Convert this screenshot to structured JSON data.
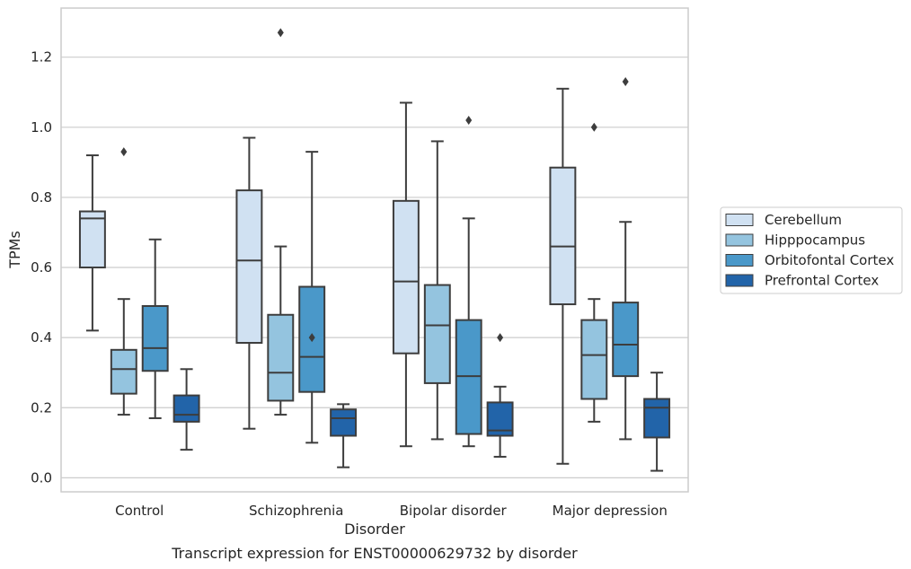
{
  "chart_data": {
    "type": "box",
    "xlabel": "Disorder",
    "ylabel": "TPMs",
    "caption": "Transcript expression for ENST00000629732 by disorder",
    "ylim": [
      -0.04,
      1.34
    ],
    "yticks": [
      0.0,
      0.2,
      0.4,
      0.6,
      0.8,
      1.0,
      1.2
    ],
    "ytick_labels": [
      "0.0",
      "0.2",
      "0.4",
      "0.6",
      "0.8",
      "1.0",
      "1.2"
    ],
    "grid": "horizontal",
    "legend_position": "right, outside plot",
    "categories": [
      "Control",
      "Schizophrenia",
      "Bipolar disorder",
      "Major depression"
    ],
    "series": [
      {
        "name": "Cerebellum",
        "color": "#d0e1f2",
        "boxes": [
          {
            "whisker_low": 0.42,
            "q1": 0.6,
            "median": 0.74,
            "q3": 0.76,
            "whisker_high": 0.92,
            "outliers": []
          },
          {
            "whisker_low": 0.14,
            "q1": 0.385,
            "median": 0.62,
            "q3": 0.82,
            "whisker_high": 0.97,
            "outliers": []
          },
          {
            "whisker_low": 0.09,
            "q1": 0.355,
            "median": 0.56,
            "q3": 0.79,
            "whisker_high": 1.07,
            "outliers": []
          },
          {
            "whisker_low": 0.04,
            "q1": 0.495,
            "median": 0.66,
            "q3": 0.885,
            "whisker_high": 1.11,
            "outliers": []
          }
        ]
      },
      {
        "name": "Hipppocampus",
        "color": "#94c4df",
        "boxes": [
          {
            "whisker_low": 0.18,
            "q1": 0.24,
            "median": 0.31,
            "q3": 0.365,
            "whisker_high": 0.51,
            "outliers": [
              0.93
            ]
          },
          {
            "whisker_low": 0.18,
            "q1": 0.22,
            "median": 0.3,
            "q3": 0.465,
            "whisker_high": 0.66,
            "outliers": [
              1.27
            ]
          },
          {
            "whisker_low": 0.11,
            "q1": 0.27,
            "median": 0.435,
            "q3": 0.55,
            "whisker_high": 0.96,
            "outliers": []
          },
          {
            "whisker_low": 0.16,
            "q1": 0.225,
            "median": 0.35,
            "q3": 0.45,
            "whisker_high": 0.51,
            "outliers": [
              1.0
            ]
          }
        ]
      },
      {
        "name": "Orbitofontal Cortex",
        "color": "#4a98c9",
        "boxes": [
          {
            "whisker_low": 0.17,
            "q1": 0.305,
            "median": 0.37,
            "q3": 0.49,
            "whisker_high": 0.68,
            "outliers": []
          },
          {
            "whisker_low": 0.1,
            "q1": 0.245,
            "median": 0.345,
            "q3": 0.545,
            "whisker_high": 0.93,
            "outliers": [
              0.4
            ]
          },
          {
            "whisker_low": 0.09,
            "q1": 0.125,
            "median": 0.29,
            "q3": 0.45,
            "whisker_high": 0.74,
            "outliers": [
              1.02
            ]
          },
          {
            "whisker_low": 0.11,
            "q1": 0.29,
            "median": 0.38,
            "q3": 0.5,
            "whisker_high": 0.73,
            "outliers": [
              1.13
            ]
          }
        ]
      },
      {
        "name": "Prefrontal Cortex",
        "color": "#2264a9",
        "boxes": [
          {
            "whisker_low": 0.08,
            "q1": 0.16,
            "median": 0.18,
            "q3": 0.235,
            "whisker_high": 0.31,
            "outliers": []
          },
          {
            "whisker_low": 0.03,
            "q1": 0.12,
            "median": 0.17,
            "q3": 0.195,
            "whisker_high": 0.21,
            "outliers": []
          },
          {
            "whisker_low": 0.06,
            "q1": 0.12,
            "median": 0.135,
            "q3": 0.215,
            "whisker_high": 0.26,
            "outliers": [
              0.4
            ]
          },
          {
            "whisker_low": 0.02,
            "q1": 0.115,
            "median": 0.2,
            "q3": 0.225,
            "whisker_high": 0.3,
            "outliers": []
          }
        ]
      }
    ]
  }
}
